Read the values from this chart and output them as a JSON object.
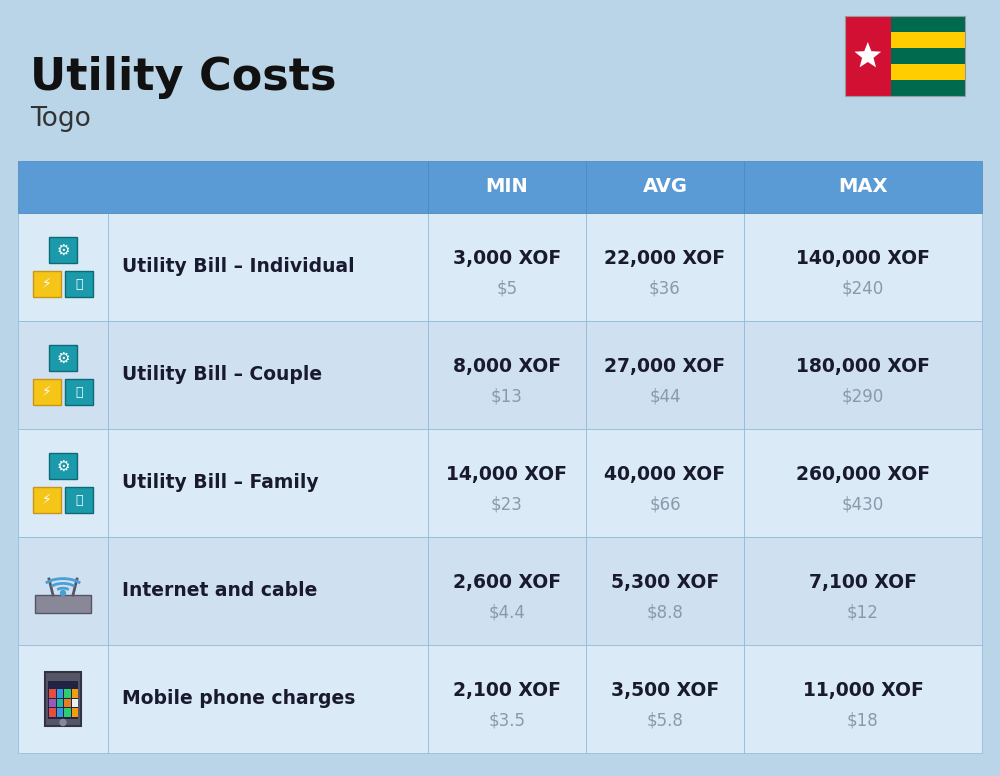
{
  "title": "Utility Costs",
  "subtitle": "Togo",
  "bg_color": "#bad4e8",
  "header_bg": "#5b9bd5",
  "header_text_color": "#ffffff",
  "row_bg_even": "#cfe0f0",
  "row_bg_odd": "#daeaf7",
  "cell_text_color": "#1a1a2e",
  "usd_text_color": "#8a9aaa",
  "col_header": [
    "MIN",
    "AVG",
    "MAX"
  ],
  "rows": [
    {
      "label": "Utility Bill – Individual",
      "min_xof": "3,000 XOF",
      "min_usd": "$5",
      "avg_xof": "22,000 XOF",
      "avg_usd": "$36",
      "max_xof": "140,000 XOF",
      "max_usd": "$240",
      "icon_type": "utility"
    },
    {
      "label": "Utility Bill – Couple",
      "min_xof": "8,000 XOF",
      "min_usd": "$13",
      "avg_xof": "27,000 XOF",
      "avg_usd": "$44",
      "max_xof": "180,000 XOF",
      "max_usd": "$290",
      "icon_type": "utility"
    },
    {
      "label": "Utility Bill – Family",
      "min_xof": "14,000 XOF",
      "min_usd": "$23",
      "avg_xof": "40,000 XOF",
      "avg_usd": "$66",
      "max_xof": "260,000 XOF",
      "max_usd": "$430",
      "icon_type": "utility"
    },
    {
      "label": "Internet and cable",
      "min_xof": "2,600 XOF",
      "min_usd": "$4.4",
      "avg_xof": "5,300 XOF",
      "avg_usd": "$8.8",
      "max_xof": "7,100 XOF",
      "max_usd": "$12",
      "icon_type": "internet"
    },
    {
      "label": "Mobile phone charges",
      "min_xof": "2,100 XOF",
      "min_usd": "$3.5",
      "avg_xof": "3,500 XOF",
      "avg_usd": "$5.8",
      "max_xof": "11,000 XOF",
      "max_usd": "$18",
      "icon_type": "mobile"
    }
  ],
  "flag_stripes": [
    "#006a4e",
    "#ffcd00",
    "#006a4e",
    "#ffcd00",
    "#006a4e"
  ],
  "flag_red": "#d21034",
  "flag_star": "#ffffff"
}
